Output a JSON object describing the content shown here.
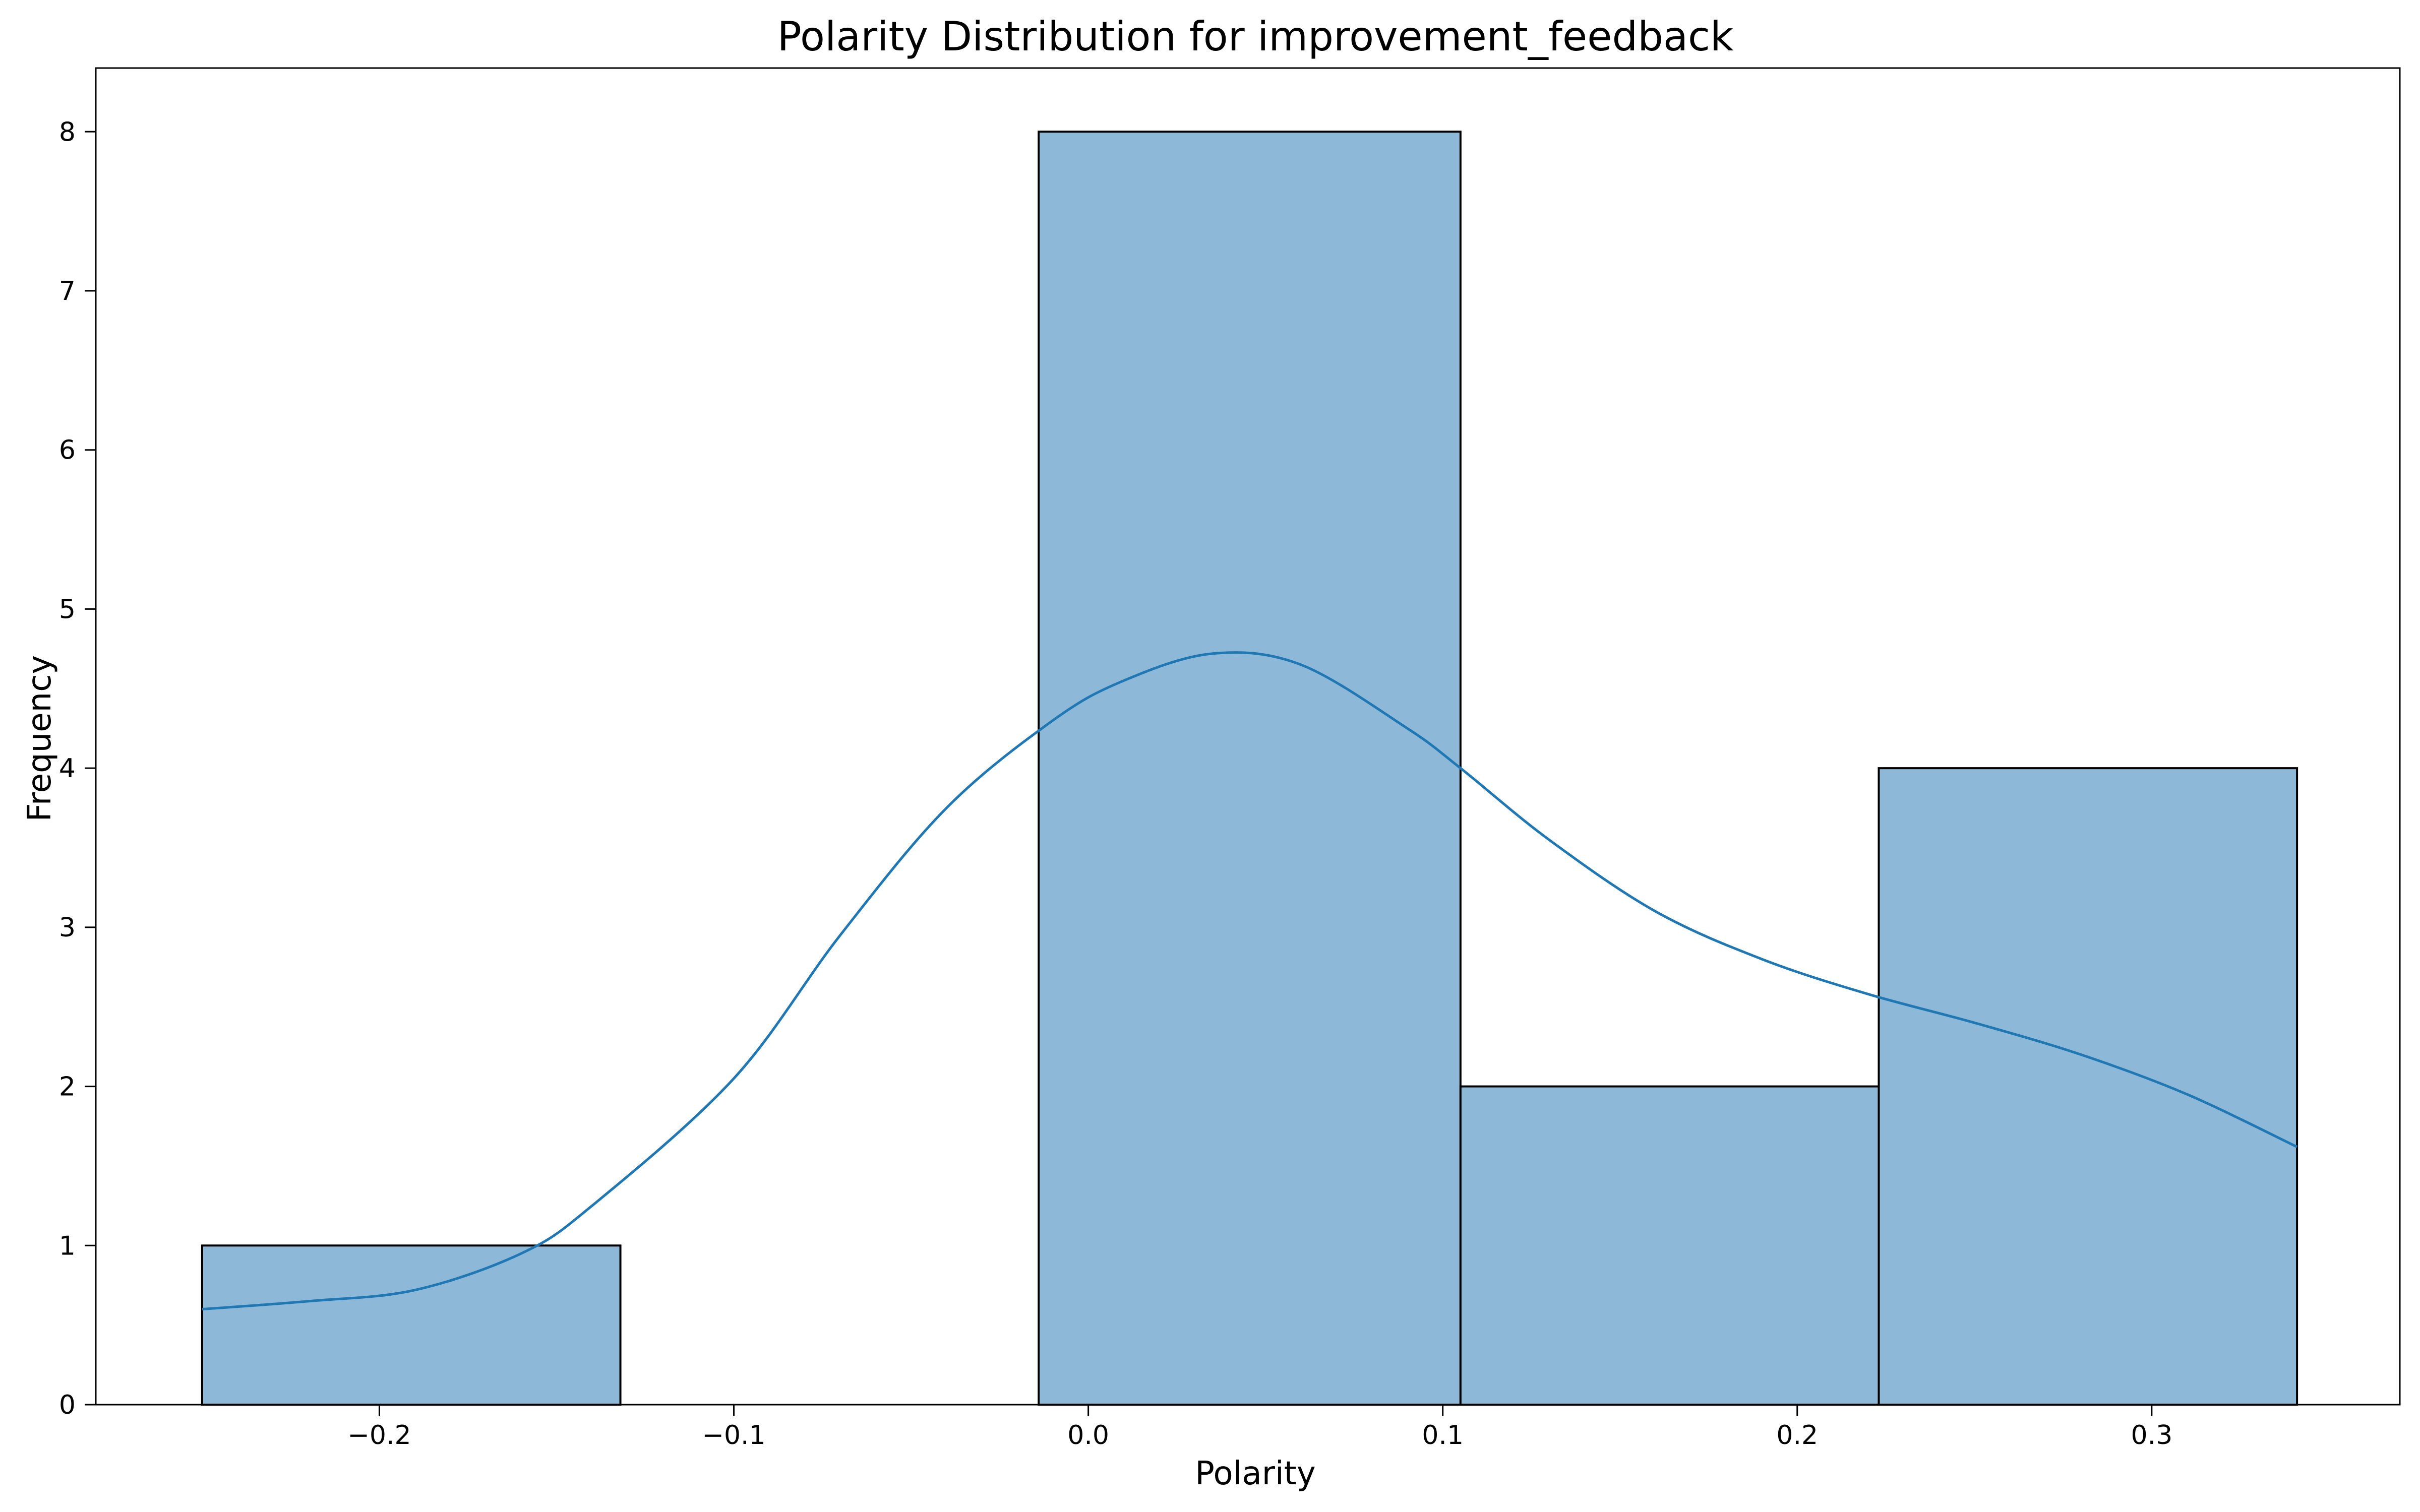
{
  "chart_data": {
    "type": "bar",
    "title": "Polarity Distribution for improvement_feedback",
    "xlabel": "Polarity",
    "ylabel": "Frequency",
    "xlim": [
      -0.28,
      0.37
    ],
    "ylim": [
      0,
      8.4
    ],
    "bins": [
      {
        "x0": -0.25,
        "x1": -0.132,
        "count": 1
      },
      {
        "x0": -0.132,
        "x1": -0.014,
        "count": 0
      },
      {
        "x0": -0.014,
        "x1": 0.105,
        "count": 8
      },
      {
        "x0": 0.105,
        "x1": 0.223,
        "count": 2
      },
      {
        "x0": 0.223,
        "x1": 0.341,
        "count": 4
      }
    ],
    "x_ticks": [
      {
        "value": -0.2,
        "label": "−0.2"
      },
      {
        "value": -0.1,
        "label": "−0.1"
      },
      {
        "value": 0.0,
        "label": "0.0"
      },
      {
        "value": 0.1,
        "label": "0.1"
      },
      {
        "value": 0.2,
        "label": "0.2"
      },
      {
        "value": 0.3,
        "label": "0.3"
      }
    ],
    "y_ticks": [
      {
        "value": 0,
        "label": "0"
      },
      {
        "value": 1,
        "label": "1"
      },
      {
        "value": 2,
        "label": "2"
      },
      {
        "value": 3,
        "label": "3"
      },
      {
        "value": 4,
        "label": "4"
      },
      {
        "value": 5,
        "label": "5"
      },
      {
        "value": 6,
        "label": "6"
      },
      {
        "value": 7,
        "label": "7"
      },
      {
        "value": 8,
        "label": "8"
      }
    ],
    "kde": {
      "x": [
        -0.25,
        -0.22,
        -0.19,
        -0.16,
        -0.14,
        -0.1,
        -0.07,
        -0.04,
        -0.01,
        0.01,
        0.035,
        0.06,
        0.09,
        0.105,
        0.13,
        0.16,
        0.19,
        0.22,
        0.25,
        0.28,
        0.31,
        0.341
      ],
      "y": [
        0.6,
        0.65,
        0.72,
        0.95,
        1.25,
        2.05,
        2.95,
        3.75,
        4.3,
        4.55,
        4.72,
        4.65,
        4.25,
        4.0,
        3.55,
        3.1,
        2.8,
        2.58,
        2.4,
        2.2,
        1.95,
        1.62
      ]
    },
    "grid": false,
    "legend": "none",
    "colors": {
      "bar_fill": "#8db8d8",
      "bar_edge": "#000000",
      "kde_line": "#1f77b4",
      "axis": "#000000"
    }
  }
}
